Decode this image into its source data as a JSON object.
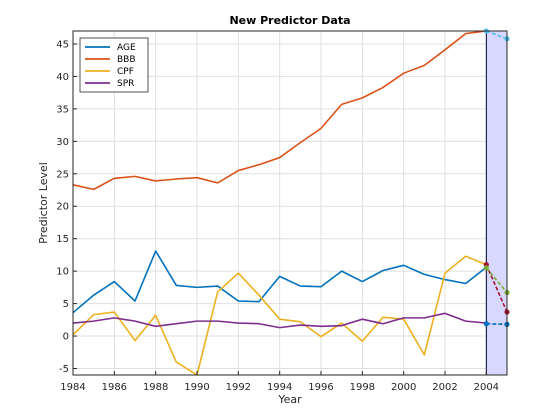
{
  "chart_data": {
    "type": "line",
    "title": "New Predictor Data",
    "xlabel": "Year",
    "ylabel": "Predictor Level",
    "xlim": [
      1984,
      2005
    ],
    "ylim": [
      -6,
      47
    ],
    "xticks": [
      1984,
      1986,
      1988,
      1990,
      1992,
      1994,
      1996,
      1998,
      2000,
      2002,
      2004
    ],
    "yticks": [
      -5,
      0,
      5,
      10,
      15,
      20,
      25,
      30,
      35,
      40,
      45
    ],
    "grid": true,
    "legend_position": "top-left",
    "x": [
      1984,
      1985,
      1986,
      1987,
      1988,
      1989,
      1990,
      1991,
      1992,
      1993,
      1994,
      1995,
      1996,
      1997,
      1998,
      1999,
      2000,
      2001,
      2002,
      2003,
      2004
    ],
    "series": [
      {
        "name": "AGE",
        "color": "#0072BD",
        "values": [
          3.6,
          6.3,
          8.4,
          5.4,
          13.1,
          7.8,
          7.5,
          7.7,
          5.4,
          5.3,
          9.2,
          7.7,
          7.6,
          10.0,
          8.4,
          10.1,
          10.9,
          9.5,
          8.7,
          8.1,
          10.6
        ]
      },
      {
        "name": "BBB",
        "color": "#D95319",
        "values": [
          23.3,
          22.6,
          24.3,
          24.6,
          23.9,
          24.2,
          24.4,
          23.6,
          25.5,
          26.4,
          27.5,
          29.8,
          32.0,
          35.7,
          36.7,
          38.3,
          40.5,
          41.7,
          44.1,
          46.6,
          47.0
        ]
      },
      {
        "name": "CPF",
        "color": "#EDB120",
        "values": [
          0.2,
          3.3,
          3.7,
          -0.7,
          3.2,
          -4.0,
          -6.0,
          6.8,
          9.7,
          6.3,
          2.6,
          2.2,
          -0.1,
          2.0,
          -0.8,
          2.9,
          2.6,
          -2.9,
          9.7,
          12.3,
          11.0
        ]
      },
      {
        "name": "SPR",
        "color": "#7E2F8E",
        "values": [
          2.0,
          2.3,
          2.8,
          2.3,
          1.5,
          1.9,
          2.3,
          2.3,
          2.0,
          1.9,
          1.3,
          1.7,
          1.5,
          1.6,
          2.6,
          1.9,
          2.8,
          2.8,
          3.5,
          2.3,
          2.0
        ]
      }
    ],
    "forecast": {
      "x": [
        2004,
        2005
      ],
      "shaded_range": [
        2004,
        2005
      ],
      "shade_color": "#D8D8FF",
      "series": [
        {
          "name": "AGE",
          "color": "#0072BD",
          "values": [
            1.9,
            1.8
          ]
        },
        {
          "name": "BBB",
          "color": "#4DBEEE",
          "values": [
            47.0,
            45.8
          ]
        },
        {
          "name": "CPF",
          "color": "#A2142F",
          "values": [
            11.0,
            3.7
          ]
        },
        {
          "name": "SPR",
          "color": "#77AC30",
          "values": [
            10.5,
            6.7
          ]
        }
      ]
    }
  }
}
